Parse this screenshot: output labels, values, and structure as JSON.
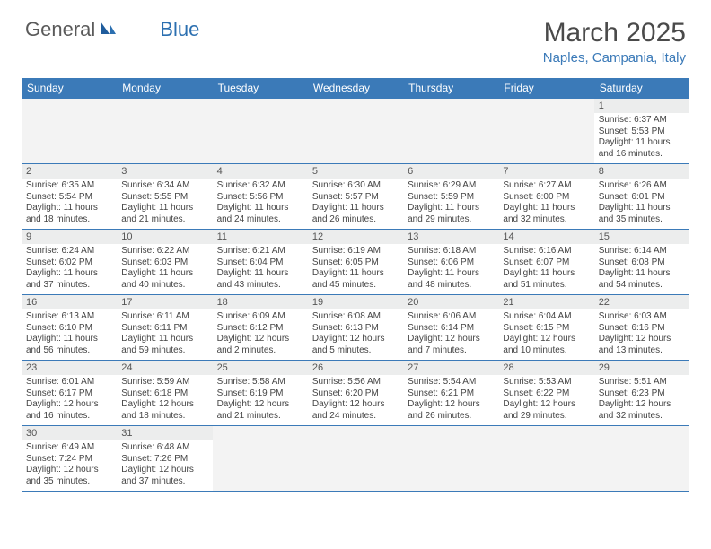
{
  "logo": {
    "general": "General",
    "blue": "Blue"
  },
  "title": "March 2025",
  "location": "Naples, Campania, Italy",
  "colors": {
    "header_bg": "#3b7ab8",
    "header_text": "#ffffff",
    "daynum_bg": "#eceded",
    "empty_bg": "#f3f3f3",
    "border": "#3b7ab8",
    "logo_accent": "#2b6fb0"
  },
  "dow": [
    "Sunday",
    "Monday",
    "Tuesday",
    "Wednesday",
    "Thursday",
    "Friday",
    "Saturday"
  ],
  "weeks": [
    [
      null,
      null,
      null,
      null,
      null,
      null,
      {
        "n": "1",
        "sr": "Sunrise: 6:37 AM",
        "ss": "Sunset: 5:53 PM",
        "d1": "Daylight: 11 hours",
        "d2": "and 16 minutes."
      }
    ],
    [
      {
        "n": "2",
        "sr": "Sunrise: 6:35 AM",
        "ss": "Sunset: 5:54 PM",
        "d1": "Daylight: 11 hours",
        "d2": "and 18 minutes."
      },
      {
        "n": "3",
        "sr": "Sunrise: 6:34 AM",
        "ss": "Sunset: 5:55 PM",
        "d1": "Daylight: 11 hours",
        "d2": "and 21 minutes."
      },
      {
        "n": "4",
        "sr": "Sunrise: 6:32 AM",
        "ss": "Sunset: 5:56 PM",
        "d1": "Daylight: 11 hours",
        "d2": "and 24 minutes."
      },
      {
        "n": "5",
        "sr": "Sunrise: 6:30 AM",
        "ss": "Sunset: 5:57 PM",
        "d1": "Daylight: 11 hours",
        "d2": "and 26 minutes."
      },
      {
        "n": "6",
        "sr": "Sunrise: 6:29 AM",
        "ss": "Sunset: 5:59 PM",
        "d1": "Daylight: 11 hours",
        "d2": "and 29 minutes."
      },
      {
        "n": "7",
        "sr": "Sunrise: 6:27 AM",
        "ss": "Sunset: 6:00 PM",
        "d1": "Daylight: 11 hours",
        "d2": "and 32 minutes."
      },
      {
        "n": "8",
        "sr": "Sunrise: 6:26 AM",
        "ss": "Sunset: 6:01 PM",
        "d1": "Daylight: 11 hours",
        "d2": "and 35 minutes."
      }
    ],
    [
      {
        "n": "9",
        "sr": "Sunrise: 6:24 AM",
        "ss": "Sunset: 6:02 PM",
        "d1": "Daylight: 11 hours",
        "d2": "and 37 minutes."
      },
      {
        "n": "10",
        "sr": "Sunrise: 6:22 AM",
        "ss": "Sunset: 6:03 PM",
        "d1": "Daylight: 11 hours",
        "d2": "and 40 minutes."
      },
      {
        "n": "11",
        "sr": "Sunrise: 6:21 AM",
        "ss": "Sunset: 6:04 PM",
        "d1": "Daylight: 11 hours",
        "d2": "and 43 minutes."
      },
      {
        "n": "12",
        "sr": "Sunrise: 6:19 AM",
        "ss": "Sunset: 6:05 PM",
        "d1": "Daylight: 11 hours",
        "d2": "and 45 minutes."
      },
      {
        "n": "13",
        "sr": "Sunrise: 6:18 AM",
        "ss": "Sunset: 6:06 PM",
        "d1": "Daylight: 11 hours",
        "d2": "and 48 minutes."
      },
      {
        "n": "14",
        "sr": "Sunrise: 6:16 AM",
        "ss": "Sunset: 6:07 PM",
        "d1": "Daylight: 11 hours",
        "d2": "and 51 minutes."
      },
      {
        "n": "15",
        "sr": "Sunrise: 6:14 AM",
        "ss": "Sunset: 6:08 PM",
        "d1": "Daylight: 11 hours",
        "d2": "and 54 minutes."
      }
    ],
    [
      {
        "n": "16",
        "sr": "Sunrise: 6:13 AM",
        "ss": "Sunset: 6:10 PM",
        "d1": "Daylight: 11 hours",
        "d2": "and 56 minutes."
      },
      {
        "n": "17",
        "sr": "Sunrise: 6:11 AM",
        "ss": "Sunset: 6:11 PM",
        "d1": "Daylight: 11 hours",
        "d2": "and 59 minutes."
      },
      {
        "n": "18",
        "sr": "Sunrise: 6:09 AM",
        "ss": "Sunset: 6:12 PM",
        "d1": "Daylight: 12 hours",
        "d2": "and 2 minutes."
      },
      {
        "n": "19",
        "sr": "Sunrise: 6:08 AM",
        "ss": "Sunset: 6:13 PM",
        "d1": "Daylight: 12 hours",
        "d2": "and 5 minutes."
      },
      {
        "n": "20",
        "sr": "Sunrise: 6:06 AM",
        "ss": "Sunset: 6:14 PM",
        "d1": "Daylight: 12 hours",
        "d2": "and 7 minutes."
      },
      {
        "n": "21",
        "sr": "Sunrise: 6:04 AM",
        "ss": "Sunset: 6:15 PM",
        "d1": "Daylight: 12 hours",
        "d2": "and 10 minutes."
      },
      {
        "n": "22",
        "sr": "Sunrise: 6:03 AM",
        "ss": "Sunset: 6:16 PM",
        "d1": "Daylight: 12 hours",
        "d2": "and 13 minutes."
      }
    ],
    [
      {
        "n": "23",
        "sr": "Sunrise: 6:01 AM",
        "ss": "Sunset: 6:17 PM",
        "d1": "Daylight: 12 hours",
        "d2": "and 16 minutes."
      },
      {
        "n": "24",
        "sr": "Sunrise: 5:59 AM",
        "ss": "Sunset: 6:18 PM",
        "d1": "Daylight: 12 hours",
        "d2": "and 18 minutes."
      },
      {
        "n": "25",
        "sr": "Sunrise: 5:58 AM",
        "ss": "Sunset: 6:19 PM",
        "d1": "Daylight: 12 hours",
        "d2": "and 21 minutes."
      },
      {
        "n": "26",
        "sr": "Sunrise: 5:56 AM",
        "ss": "Sunset: 6:20 PM",
        "d1": "Daylight: 12 hours",
        "d2": "and 24 minutes."
      },
      {
        "n": "27",
        "sr": "Sunrise: 5:54 AM",
        "ss": "Sunset: 6:21 PM",
        "d1": "Daylight: 12 hours",
        "d2": "and 26 minutes."
      },
      {
        "n": "28",
        "sr": "Sunrise: 5:53 AM",
        "ss": "Sunset: 6:22 PM",
        "d1": "Daylight: 12 hours",
        "d2": "and 29 minutes."
      },
      {
        "n": "29",
        "sr": "Sunrise: 5:51 AM",
        "ss": "Sunset: 6:23 PM",
        "d1": "Daylight: 12 hours",
        "d2": "and 32 minutes."
      }
    ],
    [
      {
        "n": "30",
        "sr": "Sunrise: 6:49 AM",
        "ss": "Sunset: 7:24 PM",
        "d1": "Daylight: 12 hours",
        "d2": "and 35 minutes."
      },
      {
        "n": "31",
        "sr": "Sunrise: 6:48 AM",
        "ss": "Sunset: 7:26 PM",
        "d1": "Daylight: 12 hours",
        "d2": "and 37 minutes."
      },
      null,
      null,
      null,
      null,
      null
    ]
  ]
}
